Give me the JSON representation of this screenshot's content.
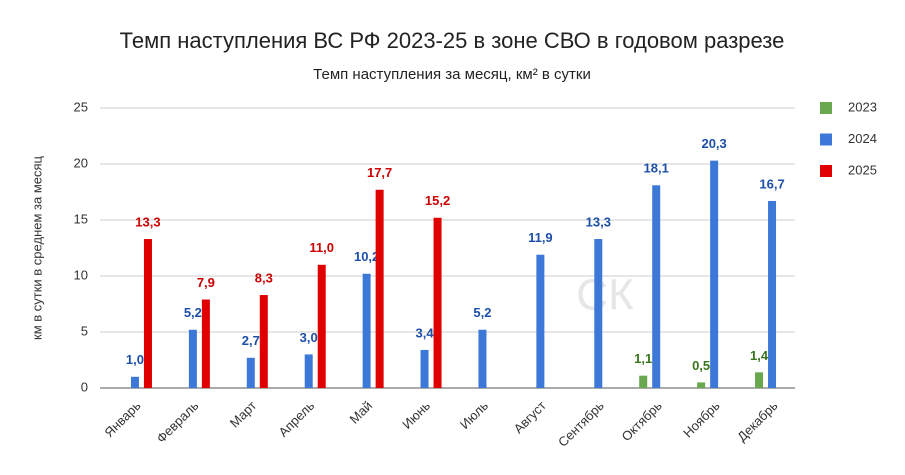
{
  "chart_data": {
    "type": "bar",
    "title": "Темп наступления ВС РФ 2023-25 в зоне СВО в годовом разрезе",
    "subtitle": "Темп наступления за месяц, км² в сутки",
    "y_label": "км в сутки в среднем за месяц",
    "watermark": "СК",
    "categories": [
      "Январь",
      "Февраль",
      "Март",
      "Апрель",
      "Май",
      "Июнь",
      "Июль",
      "Август",
      "Сентябрь",
      "Октябрь",
      "Ноябрь",
      "Декабрь"
    ],
    "series": [
      {
        "name": "2023",
        "color": "#6aa84f",
        "label_color": "#38761d",
        "values": [
          null,
          null,
          null,
          null,
          null,
          null,
          null,
          null,
          null,
          1.1,
          0.5,
          1.4
        ],
        "value_labels": [
          null,
          null,
          null,
          null,
          null,
          null,
          null,
          null,
          null,
          "1,1",
          "0,5",
          "1,4"
        ]
      },
      {
        "name": "2024",
        "color": "#3c78d8",
        "label_color": "#1c4fa8",
        "values": [
          1.0,
          5.2,
          2.7,
          3.0,
          10.2,
          3.4,
          5.2,
          11.9,
          13.3,
          18.1,
          20.3,
          16.7
        ],
        "value_labels": [
          "1,0",
          "5,2",
          "2,7",
          "3,0",
          "10,2",
          "3,4",
          "5,2",
          "11,9",
          "13,3",
          "18,1",
          "20,3",
          "16,7"
        ]
      },
      {
        "name": "2025",
        "color": "#e00000",
        "label_color": "#cc0000",
        "values": [
          13.3,
          7.9,
          8.3,
          11.0,
          17.7,
          15.2,
          null,
          null,
          null,
          null,
          null,
          null
        ],
        "value_labels": [
          "13,3",
          "7,9",
          "8,3",
          "11,0",
          "17,7",
          "15,2",
          null,
          null,
          null,
          null,
          null,
          null
        ]
      }
    ],
    "ylim": [
      0,
      25
    ],
    "yticks": [
      0,
      5,
      10,
      15,
      20,
      25
    ],
    "grid": true,
    "legend": "right"
  }
}
